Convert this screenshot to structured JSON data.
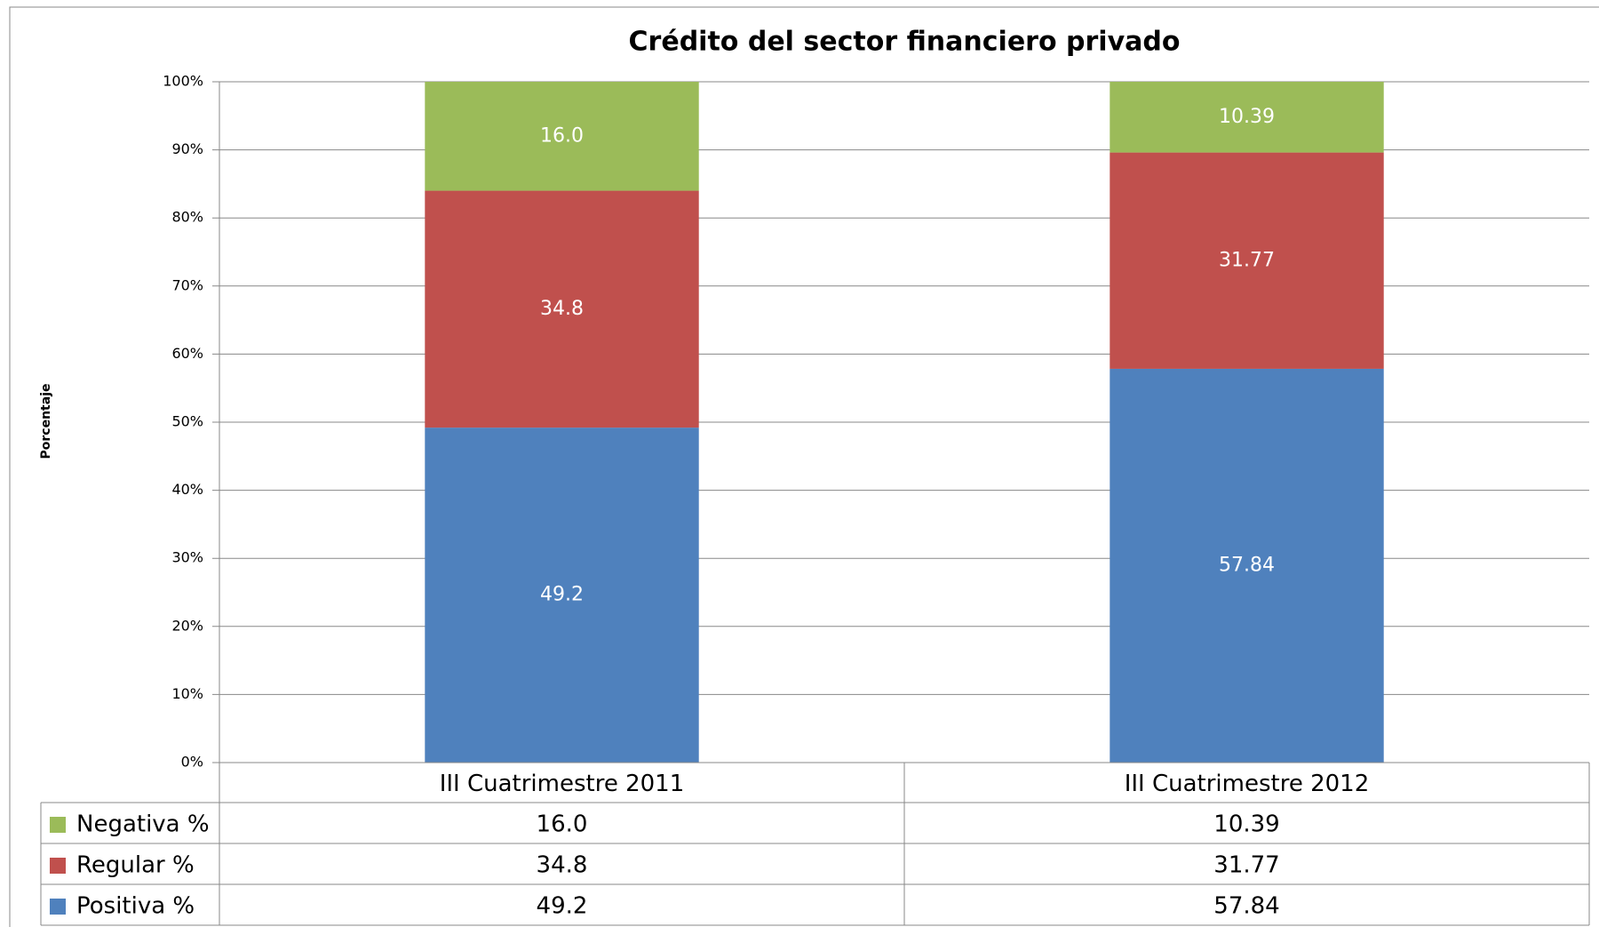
{
  "chart_data": {
    "type": "stacked_bar",
    "title": "Crédito del sector financiero privado",
    "y_label": "Porcentaje",
    "categories": [
      "III Cuatrimestre 2011",
      "III Cuatrimestre 2012"
    ],
    "series": [
      {
        "name": "Positiva %",
        "color": "#4f81bd",
        "values": [
          49.2,
          57.84
        ],
        "value_labels": [
          "49.2",
          "57.84"
        ]
      },
      {
        "name": "Regular %",
        "color": "#c0504d",
        "values": [
          34.8,
          31.77
        ],
        "value_labels": [
          "34.8",
          "31.77"
        ]
      },
      {
        "name": "Negativa %",
        "color": "#9bbb59",
        "values": [
          16.0,
          10.39
        ],
        "value_labels": [
          "16.0",
          "10.39"
        ]
      }
    ],
    "ylim": [
      0,
      100
    ],
    "yticks": [
      {
        "value": 0,
        "label": "0%"
      },
      {
        "value": 10,
        "label": "10%"
      },
      {
        "value": 20,
        "label": "20%"
      },
      {
        "value": 30,
        "label": "30%"
      },
      {
        "value": 40,
        "label": "40%"
      },
      {
        "value": 50,
        "label": "50%"
      },
      {
        "value": 60,
        "label": "60%"
      },
      {
        "value": 70,
        "label": "70%"
      },
      {
        "value": 80,
        "label": "80%"
      },
      {
        "value": 90,
        "label": "90%"
      },
      {
        "value": 100,
        "label": "100%"
      }
    ],
    "grid": true
  }
}
